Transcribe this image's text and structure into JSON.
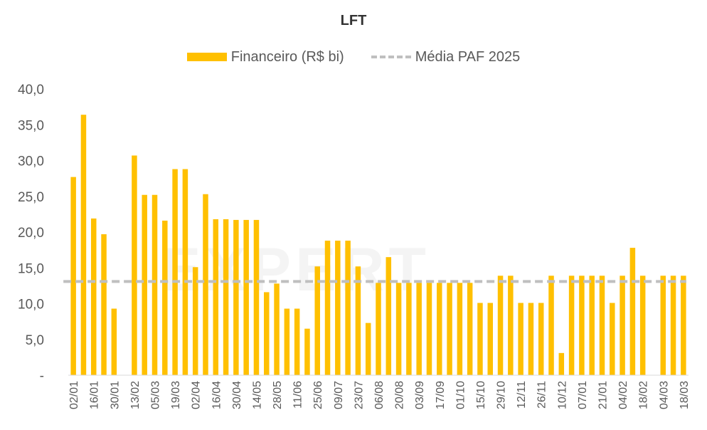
{
  "chart_data": {
    "type": "bar",
    "title": "LFT",
    "series": [
      {
        "name": "Financeiro (R$ bi)",
        "color": "#FFC000",
        "values": [
          27.7,
          36.4,
          21.9,
          19.7,
          9.3,
          0,
          30.7,
          25.2,
          25.2,
          21.6,
          28.8,
          28.8,
          15.1,
          25.3,
          21.8,
          21.8,
          21.7,
          21.7,
          21.7,
          11.6,
          12.8,
          9.3,
          9.3,
          6.5,
          15.2,
          18.8,
          18.8,
          18.8,
          15.2,
          7.3,
          12.9,
          16.5,
          12.9,
          12.9,
          12.9,
          12.9,
          12.9,
          12.9,
          12.9,
          12.9,
          10.1,
          10.1,
          13.9,
          13.9,
          10.1,
          10.1,
          10.1,
          13.9,
          3.1,
          13.9,
          13.9,
          13.9,
          13.9,
          10.1,
          13.9,
          17.8,
          13.9,
          0,
          13.9,
          13.9,
          13.9
        ]
      },
      {
        "name": "Média PAF 2025",
        "type": "line",
        "color": "#BFBFBF",
        "value": 13.1
      }
    ],
    "x_tick_labels": [
      "02/01",
      "16/01",
      "30/01",
      "13/02",
      "05/03",
      "19/03",
      "02/04",
      "16/04",
      "30/04",
      "14/05",
      "28/05",
      "11/06",
      "25/06",
      "09/07",
      "23/07",
      "06/08",
      "20/08",
      "03/09",
      "17/09",
      "01/10",
      "15/10",
      "29/10",
      "12/11",
      "26/11",
      "10/12",
      "07/01",
      "21/01",
      "04/02",
      "18/02",
      "04/03",
      "18/03"
    ],
    "y_tick_labels": [
      "-",
      "5,0",
      "10,0",
      "15,0",
      "20,0",
      "25,0",
      "30,0",
      "35,0",
      "40,0"
    ],
    "ylim": [
      0,
      40
    ],
    "xlabel": "",
    "ylabel": "",
    "grid": false,
    "legend_position": "top"
  },
  "legend": {
    "bar_label": "Financeiro (R$ bi)",
    "line_label": "Média PAF 2025"
  },
  "watermark": "EXPERT"
}
